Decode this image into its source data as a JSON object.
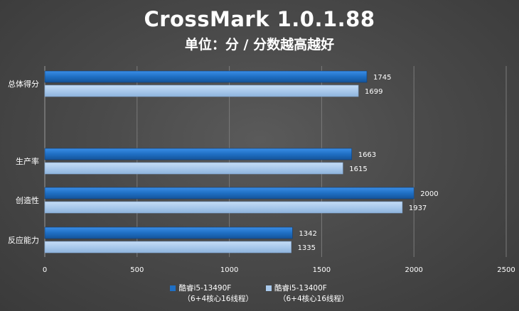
{
  "chart_data": {
    "type": "bar",
    "orientation": "horizontal",
    "title": "CrossMark 1.0.1.88",
    "subtitle": "单位：分 / 分数越高越好",
    "categories": [
      "总体得分",
      "生产率",
      "创造性",
      "反应能力"
    ],
    "series": [
      {
        "name": "酷睿i5-13490F",
        "name_line2": "（6+4核心16线程）",
        "color": "#1f6fc4",
        "values": [
          1745,
          1663,
          2000,
          1342
        ]
      },
      {
        "name": "酷睿i5-13400F",
        "name_line2": "（6+4核心16线程）",
        "color": "#a9c9ec",
        "values": [
          1699,
          1615,
          1937,
          1335
        ]
      }
    ],
    "xlim": [
      0,
      2500
    ],
    "x_ticks": [
      "0",
      "500",
      "1000",
      "1500",
      "2000",
      "2500"
    ],
    "grid": true,
    "legend": "bottom"
  }
}
